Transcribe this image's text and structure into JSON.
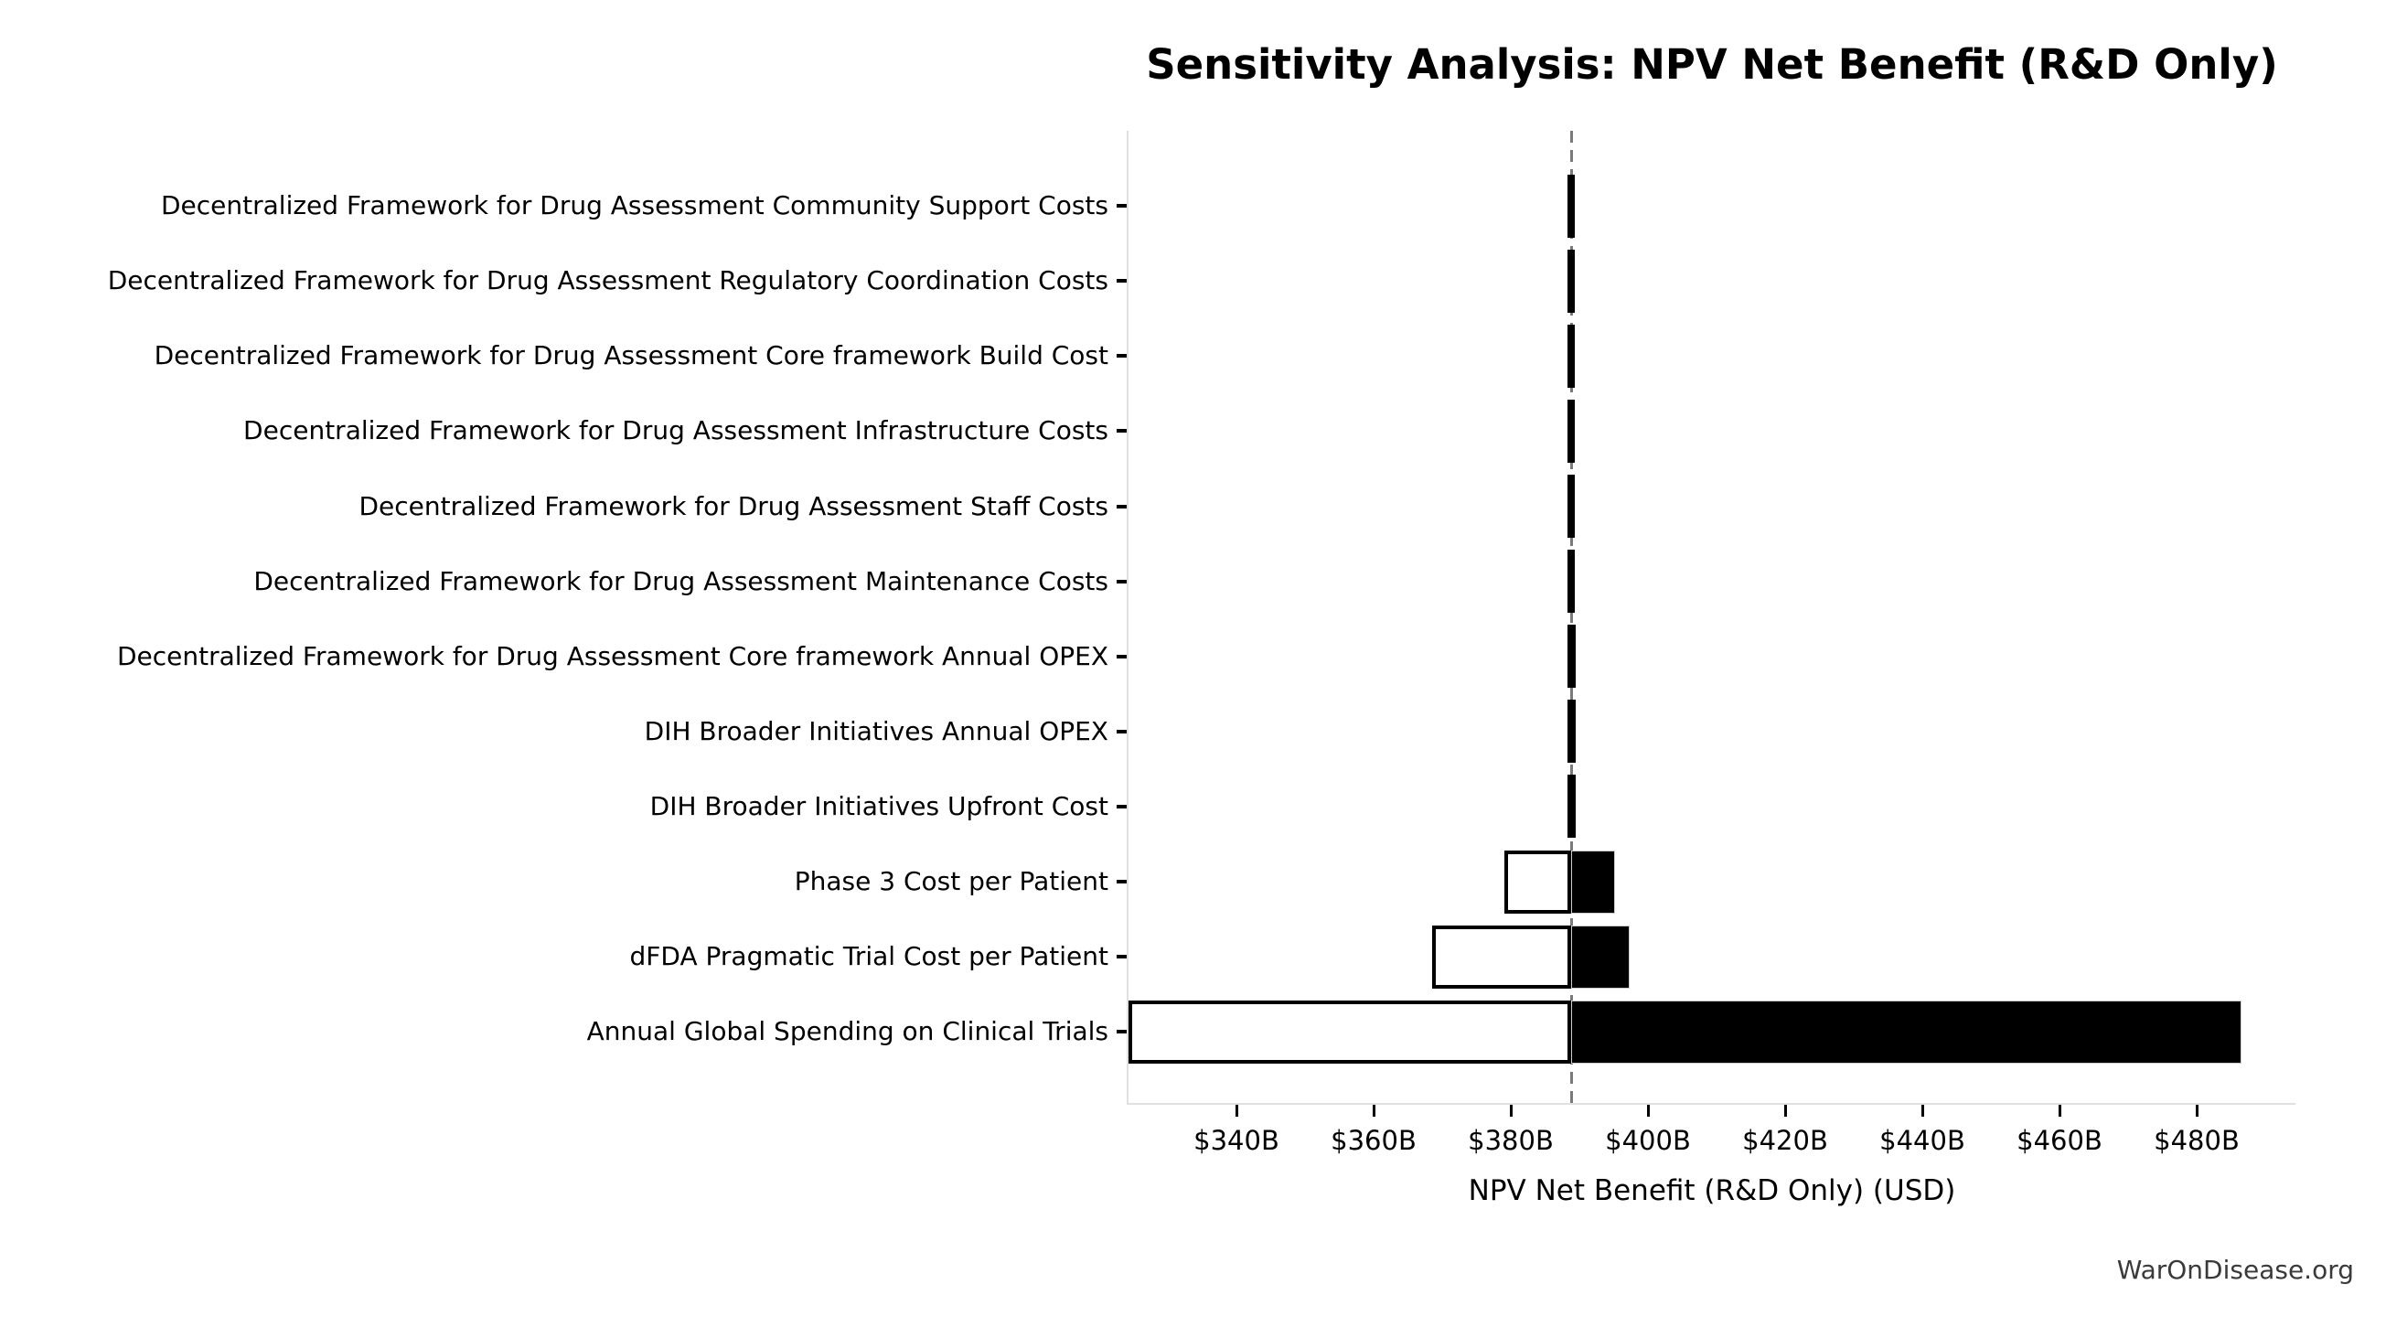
{
  "watermark": "WarOnDisease.org",
  "chart_data": {
    "type": "bar",
    "subtype": "tornado-horizontal",
    "title": "Sensitivity Analysis: NPV Net Benefit (R&D Only)",
    "xlabel": "NPV Net Benefit (R&D Only) (USD)",
    "ylabel": "",
    "unit": "USD billions",
    "baseline_value": 388.8,
    "xlim": [
      324.0,
      494.4
    ],
    "grid": false,
    "legend": null,
    "x_ticks": [
      {
        "value": 340,
        "label": "$340B"
      },
      {
        "value": 360,
        "label": "$360B"
      },
      {
        "value": 380,
        "label": "$380B"
      },
      {
        "value": 400,
        "label": "$400B"
      },
      {
        "value": 420,
        "label": "$420B"
      },
      {
        "value": 440,
        "label": "$440B"
      },
      {
        "value": 460,
        "label": "$460B"
      },
      {
        "value": 480,
        "label": "$480B"
      }
    ],
    "categories": [
      {
        "label": "Decentralized Framework for Drug Assessment Community Support Costs",
        "low": 388.3,
        "high": 389.3
      },
      {
        "label": "Decentralized Framework for Drug Assessment Regulatory Coordination Costs",
        "low": 388.3,
        "high": 389.3
      },
      {
        "label": "Decentralized Framework for Drug Assessment Core framework Build Cost",
        "low": 388.3,
        "high": 389.3
      },
      {
        "label": "Decentralized Framework for Drug Assessment Infrastructure Costs",
        "low": 388.3,
        "high": 389.3
      },
      {
        "label": "Decentralized Framework for Drug Assessment Staff Costs",
        "low": 388.3,
        "high": 389.3
      },
      {
        "label": "Decentralized Framework for Drug Assessment Maintenance Costs",
        "low": 388.3,
        "high": 389.3
      },
      {
        "label": "Decentralized Framework for Drug Assessment Core framework Annual OPEX",
        "low": 388.2,
        "high": 389.4
      },
      {
        "label": "DIH Broader Initiatives Annual OPEX",
        "low": 388.2,
        "high": 389.4
      },
      {
        "label": "DIH Broader Initiatives Upfront Cost",
        "low": 388.2,
        "high": 389.4
      },
      {
        "label": "Phase 3 Cost per Patient",
        "low": 379.0,
        "high": 395.2
      },
      {
        "label": "dFDA Pragmatic Trial Cost per Patient",
        "low": 368.5,
        "high": 397.3
      },
      {
        "label": "Annual Global Spending on Clinical Trials",
        "low": 324.2,
        "high": 486.5
      }
    ],
    "colors": {
      "bar_high_fill": "#000000",
      "bar_low_fill": "#ffffff",
      "bar_low_edge": "#000000",
      "baseline_line": "#7a7a7a",
      "axis_spine": "#e0e0e0",
      "tick_mark": "#000000",
      "text": "#000000",
      "watermark_text": "#3a3a3a",
      "background": "#ffffff"
    }
  }
}
